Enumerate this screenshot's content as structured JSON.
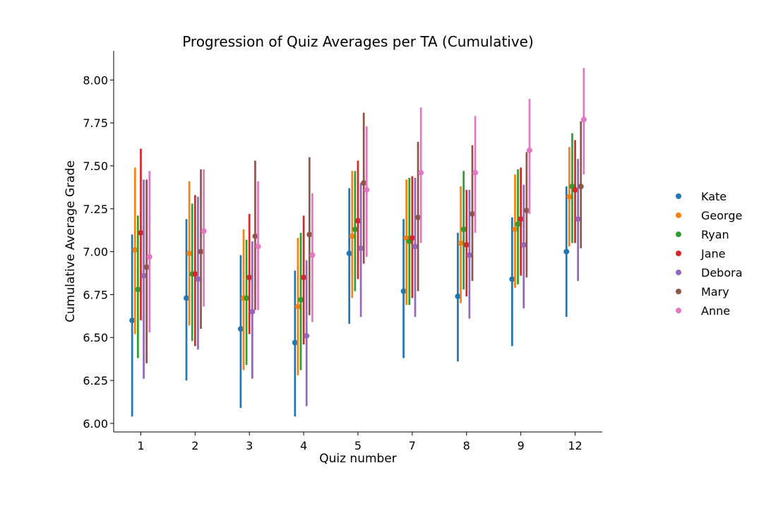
{
  "chart_data": {
    "type": "pointplot",
    "title": "Progression of Quiz Averages per TA (Cumulative)",
    "xlabel": "Quiz number",
    "ylabel": "Cumulative Average Grade",
    "categories": [
      "1",
      "2",
      "3",
      "4",
      "5",
      "7",
      "8",
      "9",
      "12"
    ],
    "ylim": [
      5.95,
      8.17
    ],
    "yticks": [
      6.0,
      6.25,
      6.5,
      6.75,
      7.0,
      7.25,
      7.5,
      7.75,
      8.0
    ],
    "ytick_labels": [
      "6.00",
      "6.25",
      "6.50",
      "6.75",
      "7.00",
      "7.25",
      "7.50",
      "7.75",
      "8.00"
    ],
    "grid": false,
    "legend_position": "center-right",
    "series": [
      {
        "name": "Kate",
        "color": "#1f77b4",
        "values": [
          6.6,
          6.73,
          6.55,
          6.47,
          6.99,
          6.77,
          6.74,
          6.84,
          7.0
        ],
        "ci_low": [
          6.04,
          6.25,
          6.09,
          6.04,
          6.58,
          6.38,
          6.36,
          6.45,
          6.62
        ],
        "ci_high": [
          7.1,
          7.19,
          6.98,
          6.89,
          7.37,
          7.19,
          7.11,
          7.2,
          7.38
        ]
      },
      {
        "name": "George",
        "color": "#ff7f0e",
        "values": [
          7.01,
          6.99,
          6.73,
          6.68,
          7.09,
          7.08,
          7.05,
          7.13,
          7.32
        ],
        "ci_low": [
          6.52,
          6.57,
          6.31,
          6.28,
          6.73,
          6.69,
          6.7,
          6.79,
          7.03
        ],
        "ci_high": [
          7.49,
          7.41,
          7.13,
          7.08,
          7.47,
          7.42,
          7.38,
          7.45,
          7.61
        ]
      },
      {
        "name": "Ryan",
        "color": "#2ca02c",
        "values": [
          6.78,
          6.87,
          6.73,
          6.72,
          7.13,
          7.06,
          7.13,
          7.16,
          7.38
        ],
        "ci_low": [
          6.38,
          6.48,
          6.34,
          6.31,
          6.77,
          6.69,
          6.78,
          6.81,
          7.05
        ],
        "ci_high": [
          7.21,
          7.28,
          7.07,
          7.11,
          7.47,
          7.43,
          7.47,
          7.48,
          7.69
        ]
      },
      {
        "name": "Jane",
        "color": "#d62728",
        "values": [
          7.11,
          6.87,
          6.85,
          6.85,
          7.18,
          7.08,
          7.04,
          7.19,
          7.36
        ],
        "ci_low": [
          6.6,
          6.45,
          6.52,
          6.46,
          6.84,
          6.73,
          6.74,
          6.86,
          7.05
        ],
        "ci_high": [
          7.6,
          7.33,
          7.22,
          7.21,
          7.53,
          7.44,
          7.36,
          7.49,
          7.65
        ]
      },
      {
        "name": "Debora",
        "color": "#9467bd",
        "values": [
          6.86,
          6.84,
          6.65,
          6.51,
          7.02,
          7.03,
          6.98,
          7.04,
          7.19
        ],
        "ci_low": [
          6.26,
          6.43,
          6.26,
          6.1,
          6.62,
          6.62,
          6.61,
          6.67,
          6.83
        ],
        "ci_high": [
          7.42,
          7.32,
          7.06,
          6.95,
          7.4,
          7.43,
          7.36,
          7.39,
          7.54
        ]
      },
      {
        "name": "Mary",
        "color": "#8c564b",
        "values": [
          6.91,
          7.0,
          7.09,
          7.1,
          7.4,
          7.2,
          7.22,
          7.24,
          7.38
        ],
        "ci_low": [
          6.35,
          6.55,
          6.66,
          6.63,
          6.93,
          6.77,
          6.83,
          6.85,
          7.02
        ],
        "ci_high": [
          7.42,
          7.48,
          7.53,
          7.55,
          7.81,
          7.64,
          7.62,
          7.58,
          7.76
        ]
      },
      {
        "name": "Anne",
        "color": "#e377c2",
        "values": [
          6.97,
          7.12,
          7.03,
          6.98,
          7.36,
          7.46,
          7.46,
          7.59,
          7.77
        ],
        "ci_low": [
          6.53,
          6.68,
          6.66,
          6.59,
          6.97,
          7.05,
          7.11,
          7.22,
          7.45
        ],
        "ci_high": [
          7.47,
          7.48,
          7.41,
          7.34,
          7.73,
          7.84,
          7.79,
          7.89,
          8.07
        ]
      }
    ]
  }
}
